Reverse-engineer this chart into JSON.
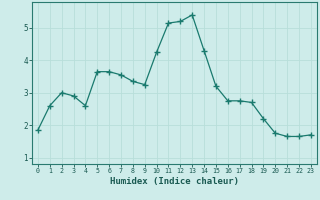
{
  "x": [
    0,
    1,
    2,
    3,
    4,
    5,
    6,
    7,
    8,
    9,
    10,
    11,
    12,
    13,
    14,
    15,
    16,
    17,
    18,
    19,
    20,
    21,
    22,
    23
  ],
  "y": [
    1.85,
    2.6,
    3.0,
    2.9,
    2.6,
    3.65,
    3.65,
    3.55,
    3.35,
    3.25,
    4.25,
    5.15,
    5.2,
    5.4,
    4.3,
    3.2,
    2.75,
    2.75,
    2.7,
    2.2,
    1.75,
    1.65,
    1.65,
    1.7
  ],
  "xlabel": "Humidex (Indice chaleur)",
  "ylim": [
    0.8,
    5.8
  ],
  "xlim": [
    -0.5,
    23.5
  ],
  "yticks": [
    1,
    2,
    3,
    4,
    5
  ],
  "xticks": [
    0,
    1,
    2,
    3,
    4,
    5,
    6,
    7,
    8,
    9,
    10,
    11,
    12,
    13,
    14,
    15,
    16,
    17,
    18,
    19,
    20,
    21,
    22,
    23
  ],
  "line_color": "#1a7a6e",
  "marker_color": "#1a7a6e",
  "bg_color": "#ceecea",
  "grid_color": "#b8deda",
  "axis_color": "#2a7a70",
  "tick_color": "#1a5a52",
  "label_color": "#1a5a52"
}
